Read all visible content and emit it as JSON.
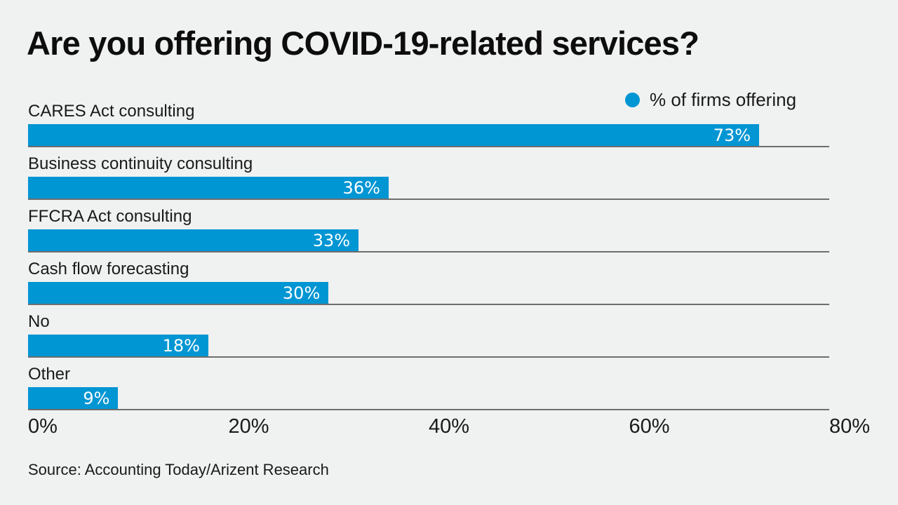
{
  "title": "Are you offering COVID-19-related services?",
  "legend": {
    "marker": "circle",
    "marker_color": "#0095d3",
    "label": "% of firms offering"
  },
  "source": "Source: Accounting Today/Arizent Research",
  "colors": {
    "background": "#f0f1f1",
    "bar": "#0095d3",
    "gridline": "#6e6e6e",
    "text": "#1a1a1a",
    "value_text": "#ffffff"
  },
  "chart_data": {
    "type": "bar",
    "orientation": "horizontal",
    "title": "Are you offering COVID-19-related services?",
    "categories": [
      "CARES Act consulting",
      "Business continuity consulting",
      "FFCRA Act consulting",
      "Cash flow forecasting",
      "No",
      "Other"
    ],
    "series": [
      {
        "name": "% of firms offering",
        "values": [
          73,
          36,
          33,
          30,
          18,
          9
        ]
      }
    ],
    "value_labels": [
      "73%",
      "36%",
      "33%",
      "30%",
      "18%",
      "9%"
    ],
    "xlabel": "",
    "ylabel": "",
    "xlim": [
      0,
      80
    ],
    "x_ticks": [
      "0%",
      "20%",
      "40%",
      "60%",
      "80%"
    ],
    "x_tick_values": [
      0,
      20,
      40,
      60,
      80
    ],
    "grid": "horizontal row separators",
    "legend_position": "top-right",
    "value_label_position": "inside-end"
  }
}
